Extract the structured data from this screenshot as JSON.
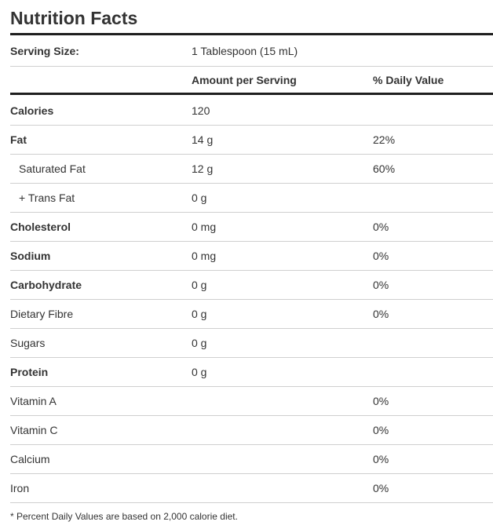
{
  "title": "Nutrition Facts",
  "serving": {
    "label": "Serving Size:",
    "value": "1 Tablespoon (15 mL)"
  },
  "headers": {
    "amount": "Amount per Serving",
    "daily_value": "% Daily Value"
  },
  "rows": [
    {
      "name": "Calories",
      "amount": "120",
      "dv": ""
    },
    {
      "name": "Fat",
      "amount": "14 g",
      "dv": "22%"
    },
    {
      "name": "Saturated Fat",
      "amount": "12 g",
      "dv": "60%"
    },
    {
      "name": "+ Trans Fat",
      "amount": "0 g",
      "dv": ""
    },
    {
      "name": "Cholesterol",
      "amount": "0 mg",
      "dv": "0%"
    },
    {
      "name": "Sodium",
      "amount": "0 mg",
      "dv": "0%"
    },
    {
      "name": "Carbohydrate",
      "amount": "0 g",
      "dv": "0%"
    },
    {
      "name": "Dietary Fibre",
      "amount": "0 g",
      "dv": "0%"
    },
    {
      "name": "Sugars",
      "amount": "0 g",
      "dv": ""
    },
    {
      "name": "Protein",
      "amount": "0 g",
      "dv": ""
    },
    {
      "name": "Vitamin A",
      "amount": "",
      "dv": "0%"
    },
    {
      "name": "Vitamin C",
      "amount": "",
      "dv": "0%"
    },
    {
      "name": "Calcium",
      "amount": "",
      "dv": "0%"
    },
    {
      "name": "Iron",
      "amount": "",
      "dv": "0%"
    }
  ],
  "footnote": "* Percent Daily Values are based on 2,000 calorie diet."
}
